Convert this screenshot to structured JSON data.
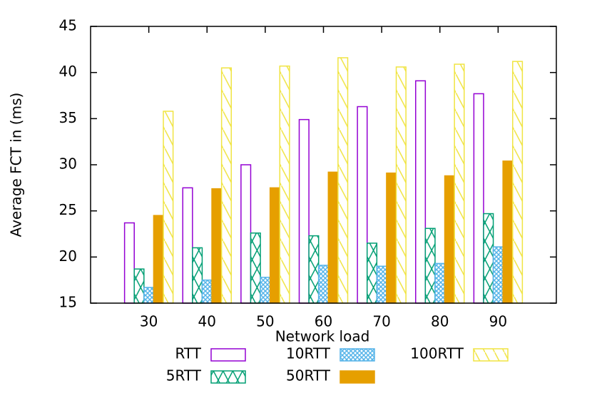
{
  "chart_data": {
    "type": "bar",
    "x_label": "Network load",
    "y_label": "Average FCT in (ms)",
    "x": [
      30,
      40,
      50,
      60,
      70,
      80,
      90
    ],
    "xlim": [
      20,
      100
    ],
    "xticks": [
      30,
      40,
      50,
      60,
      70,
      80,
      90
    ],
    "ylim": [
      15,
      45
    ],
    "yticks": [
      15,
      20,
      25,
      30,
      35,
      40,
      45
    ],
    "legend": "bottom",
    "series": [
      {
        "name": "RTT",
        "color": "#9400d3",
        "pattern": "empty",
        "values": [
          23.7,
          27.5,
          30.0,
          34.9,
          36.3,
          39.1,
          37.7
        ]
      },
      {
        "name": "5RTT",
        "color": "#009e73",
        "pattern": "cross",
        "values": [
          18.7,
          21.0,
          22.6,
          22.3,
          21.5,
          23.1,
          24.7
        ]
      },
      {
        "name": "10RTT",
        "color": "#56b4e9",
        "pattern": "hatch",
        "values": [
          16.7,
          17.5,
          17.8,
          19.1,
          19.0,
          19.3,
          21.1
        ]
      },
      {
        "name": "50RTT",
        "color": "#e69f00",
        "pattern": "solid",
        "values": [
          24.5,
          27.4,
          27.5,
          29.2,
          29.1,
          28.8,
          30.4
        ]
      },
      {
        "name": "100RTT",
        "color": "#f0e442",
        "pattern": "diagonal",
        "values": [
          35.8,
          40.5,
          40.7,
          41.6,
          40.6,
          40.9,
          41.2
        ]
      }
    ]
  }
}
